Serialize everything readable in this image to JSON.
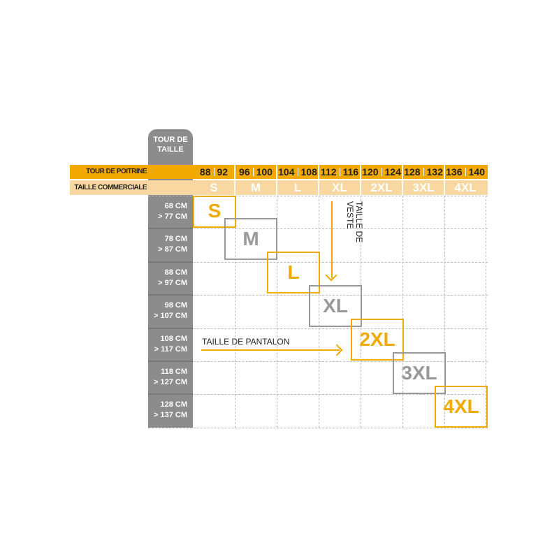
{
  "waist_header": [
    "TOUR DE",
    "TAILLE"
  ],
  "chest_label": "TOUR DE POITRINE",
  "size_label": "TAILLE COMMERCIALE",
  "columns": [
    {
      "chest": [
        "88",
        "92"
      ],
      "size": "S"
    },
    {
      "chest": [
        "96",
        "100"
      ],
      "size": "M"
    },
    {
      "chest": [
        "104",
        "108"
      ],
      "size": "L"
    },
    {
      "chest": [
        "112",
        "116"
      ],
      "size": "XL"
    },
    {
      "chest": [
        "120",
        "124"
      ],
      "size": "2XL"
    },
    {
      "chest": [
        "128",
        "132"
      ],
      "size": "3XL"
    },
    {
      "chest": [
        "136",
        "140"
      ],
      "size": "4XL"
    }
  ],
  "waist_rows": [
    [
      "68 CM",
      "> 77 CM"
    ],
    [
      "78 CM",
      "> 87 CM"
    ],
    [
      "88 CM",
      "> 97 CM"
    ],
    [
      "98 CM",
      "> 107 CM"
    ],
    [
      "108 CM",
      "> 117 CM"
    ],
    [
      "118 CM",
      "> 127 CM"
    ],
    [
      "128 CM",
      "> 137 CM"
    ]
  ],
  "boxes": [
    "S",
    "M",
    "L",
    "XL",
    "2XL",
    "3XL",
    "4XL"
  ],
  "jacket_label": "TAILLE DE VESTE",
  "pants_label": "TAILLE DE PANTALON",
  "colors": {
    "orange": "#f2a900",
    "light_orange": "#f8d8a0",
    "gray": "#8c8c8c"
  }
}
